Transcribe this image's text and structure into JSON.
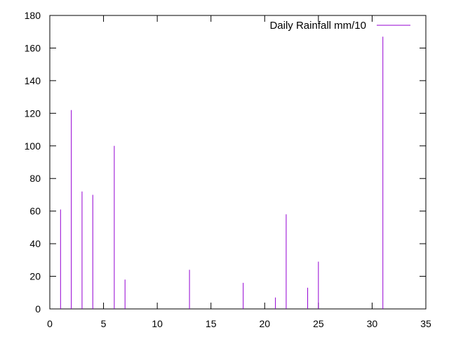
{
  "chart_data": {
    "type": "bar",
    "style": "impulses",
    "series": [
      {
        "name": "Daily Rainfall mm/10",
        "color": "#9400d3",
        "points": [
          {
            "x": 1,
            "y": 61
          },
          {
            "x": 2,
            "y": 122
          },
          {
            "x": 3,
            "y": 72
          },
          {
            "x": 4,
            "y": 70
          },
          {
            "x": 6,
            "y": 100
          },
          {
            "x": 7,
            "y": 18
          },
          {
            "x": 13,
            "y": 24
          },
          {
            "x": 18,
            "y": 16
          },
          {
            "x": 21,
            "y": 7
          },
          {
            "x": 22,
            "y": 58
          },
          {
            "x": 24,
            "y": 13
          },
          {
            "x": 25,
            "y": 29
          },
          {
            "x": 31,
            "y": 167
          }
        ]
      }
    ],
    "xlim": [
      0,
      35
    ],
    "ylim": [
      0,
      180
    ],
    "xticks": [
      "0",
      "5",
      "10",
      "15",
      "20",
      "25",
      "30",
      "35"
    ],
    "yticks": [
      "0",
      "20",
      "40",
      "60",
      "80",
      "100",
      "120",
      "140",
      "160",
      "180"
    ],
    "title": "",
    "xlabel": "",
    "ylabel": "",
    "grid": false,
    "legend": "top-right"
  }
}
